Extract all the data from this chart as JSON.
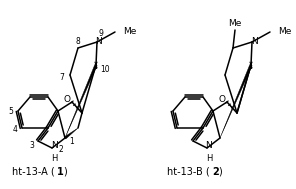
{
  "figsize": [
    2.96,
    1.89
  ],
  "dpi": 100,
  "bg_color": "#ffffff",
  "me_text": "Me",
  "n_text": "N",
  "h_text": "H",
  "o_text": "O"
}
